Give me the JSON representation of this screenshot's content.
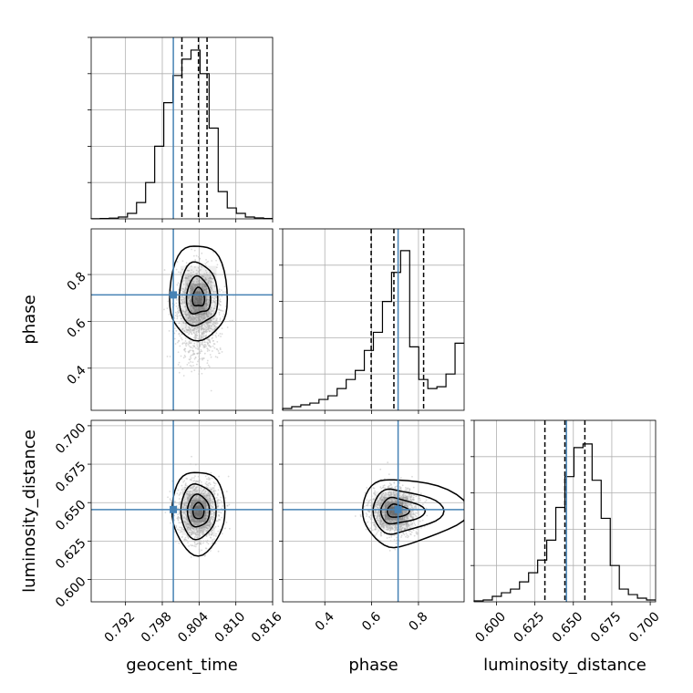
{
  "chart_data": {
    "type": "corner",
    "parameters": [
      "geocent_time",
      "phase",
      "luminosity_distance"
    ],
    "ranges": {
      "geocent_time": [
        0.7864,
        0.816
      ],
      "phase": [
        0.22,
        0.995
      ],
      "luminosity_distance": [
        0.5855,
        0.7035
      ]
    },
    "truths": {
      "geocent_time": 0.7998,
      "phase": 0.713,
      "luminosity_distance": 0.6455
    },
    "quantiles": {
      "geocent_time": [
        0.8012,
        0.8039,
        0.8053
      ],
      "phase": [
        0.598,
        0.695,
        0.822
      ],
      "luminosity_distance": [
        0.6315,
        0.6445,
        0.6575
      ]
    },
    "x_ticks": {
      "geocent_time": [
        "0.792",
        "0.798",
        "0.804",
        "0.810",
        "0.816"
      ],
      "phase": [
        "0.4",
        "0.6",
        "0.8"
      ],
      "luminosity_distance": [
        "0.600",
        "0.625",
        "0.650",
        "0.675",
        "0.700"
      ]
    },
    "y_ticks": {
      "phase": [
        "0.4",
        "0.6",
        "0.8"
      ],
      "luminosity_distance": [
        "0.600",
        "0.625",
        "0.650",
        "0.675",
        "0.700"
      ]
    },
    "histograms": {
      "geocent_time": [
        0.001,
        0.002,
        0.004,
        0.01,
        0.03,
        0.09,
        0.2,
        0.4,
        0.64,
        0.79,
        0.88,
        0.93,
        0.8,
        0.5,
        0.15,
        0.06,
        0.03,
        0.01,
        0.005,
        0.002
      ],
      "phase": [
        0.01,
        0.02,
        0.03,
        0.04,
        0.06,
        0.08,
        0.12,
        0.17,
        0.22,
        0.33,
        0.43,
        0.6,
        0.76,
        0.88,
        0.35,
        0.17,
        0.12,
        0.13,
        0.2,
        0.37
      ],
      "luminosity_distance": [
        0.005,
        0.01,
        0.03,
        0.05,
        0.07,
        0.11,
        0.16,
        0.23,
        0.34,
        0.52,
        0.69,
        0.85,
        0.87,
        0.67,
        0.46,
        0.2,
        0.07,
        0.04,
        0.02,
        0.01
      ]
    },
    "hist_ylim": [
      0,
      1
    ],
    "colors": {
      "truth": "#4682b4",
      "contour": "#000000",
      "samples": "#bdbdbd",
      "grid": "#b0b0b0",
      "density": "#404040"
    },
    "grid": true
  }
}
